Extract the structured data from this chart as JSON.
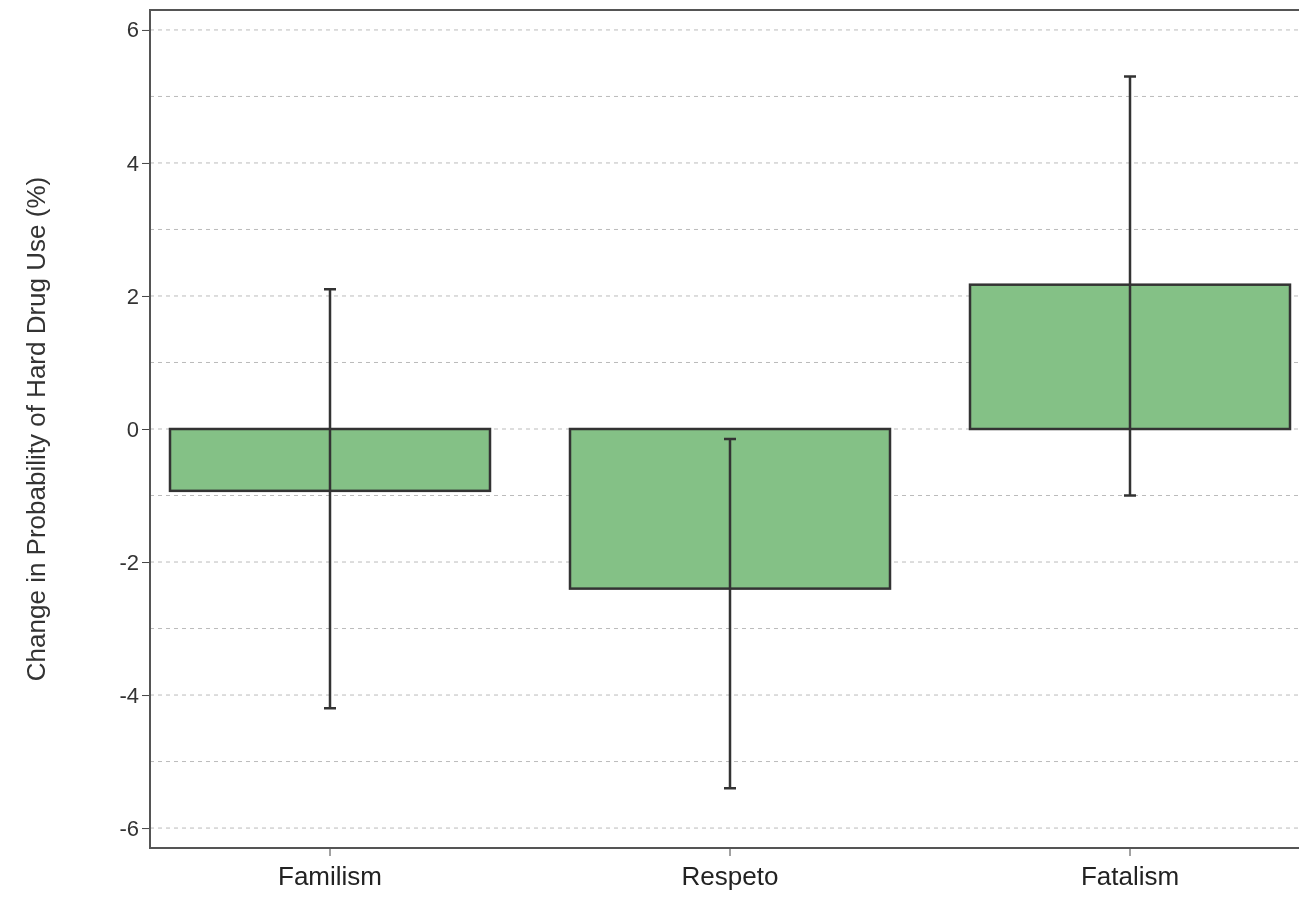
{
  "chart_data": {
    "type": "bar",
    "ylabel": "Change in Probability of Hard Drug Use (%)",
    "categories": [
      "Familism",
      "Respeto",
      "Fatalism"
    ],
    "values": [
      -0.93,
      -2.4,
      2.17
    ],
    "errors": [
      [
        -4.2,
        2.1
      ],
      [
        -5.4,
        -0.15
      ],
      [
        -1.0,
        5.3
      ]
    ],
    "color": "#84c186",
    "ylim": [
      -6.3,
      6.3
    ],
    "yticks": [
      -6,
      {
        "value": -5,
        "label": null
      },
      -4,
      {
        "value": -3,
        "label": null
      },
      -2,
      {
        "value": -1,
        "label": null
      },
      0,
      {
        "value": 1,
        "label": null
      },
      2,
      {
        "value": 3,
        "label": null
      },
      4,
      {
        "value": 5,
        "label": null
      },
      6
    ],
    "grid": "y"
  }
}
